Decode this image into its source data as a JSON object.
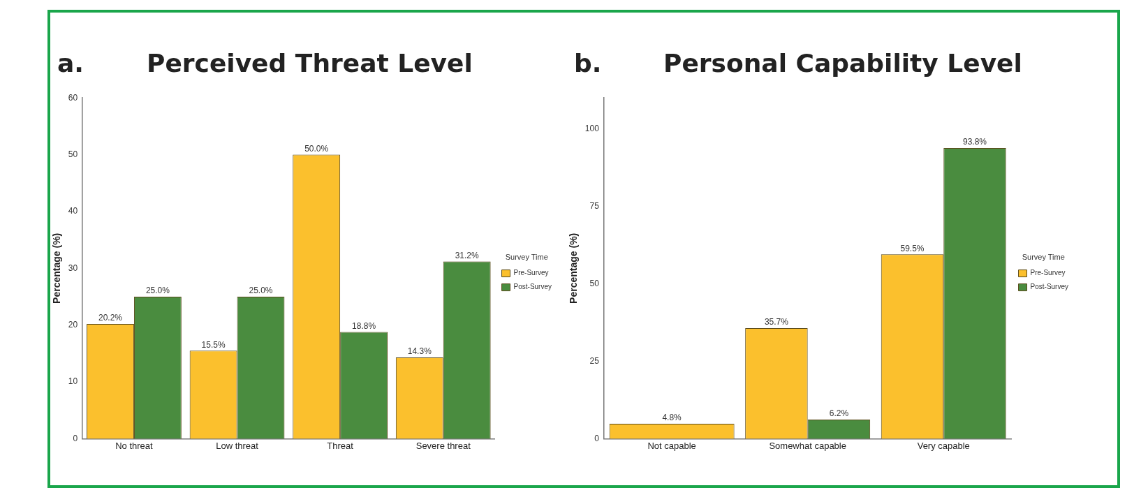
{
  "chart_data": [
    {
      "type": "bar",
      "title": "Perceived Threat Level",
      "annotations": [
        "a."
      ],
      "ylabel": "Percentage (%)",
      "legend_title": "Survey Time",
      "legend": "right",
      "categories": [
        "No threat",
        "Low threat",
        "Threat",
        "Severe threat"
      ],
      "series": [
        {
          "name": "Pre-Survey",
          "color": "#fbc02d",
          "values": [
            20.2,
            15.5,
            50.0,
            14.3
          ],
          "value_labels": [
            "20.2%",
            "15.5%",
            "50.0%",
            "14.3%"
          ]
        },
        {
          "name": "Post-Survey",
          "color": "#4a8c3f",
          "values": [
            25.0,
            25.0,
            18.8,
            31.2
          ],
          "value_labels": [
            "25.0%",
            "25.0%",
            "18.8%",
            "31.2%"
          ]
        }
      ],
      "ylim": [
        0,
        60
      ],
      "yticks": [
        0,
        10,
        20,
        30,
        40,
        50,
        60
      ],
      "grid": false
    },
    {
      "type": "bar",
      "title": "Personal Capability Level",
      "annotations": [
        "b."
      ],
      "ylabel": "Percentage (%)",
      "legend_title": "Survey Time",
      "legend": "right",
      "categories": [
        "Not capable",
        "Somewhat capable",
        "Very capable"
      ],
      "series": [
        {
          "name": "Pre-Survey",
          "color": "#fbc02d",
          "values": [
            4.8,
            35.7,
            59.5
          ],
          "value_labels": [
            "4.8%",
            "35.7%",
            "59.5%"
          ]
        },
        {
          "name": "Post-Survey",
          "color": "#4a8c3f",
          "values": [
            null,
            6.2,
            93.8
          ],
          "value_labels": [
            null,
            "6.2%",
            "93.8%"
          ]
        }
      ],
      "ylim": [
        0,
        110
      ],
      "yticks": [
        0,
        25,
        50,
        75,
        100
      ],
      "grid": false
    }
  ]
}
